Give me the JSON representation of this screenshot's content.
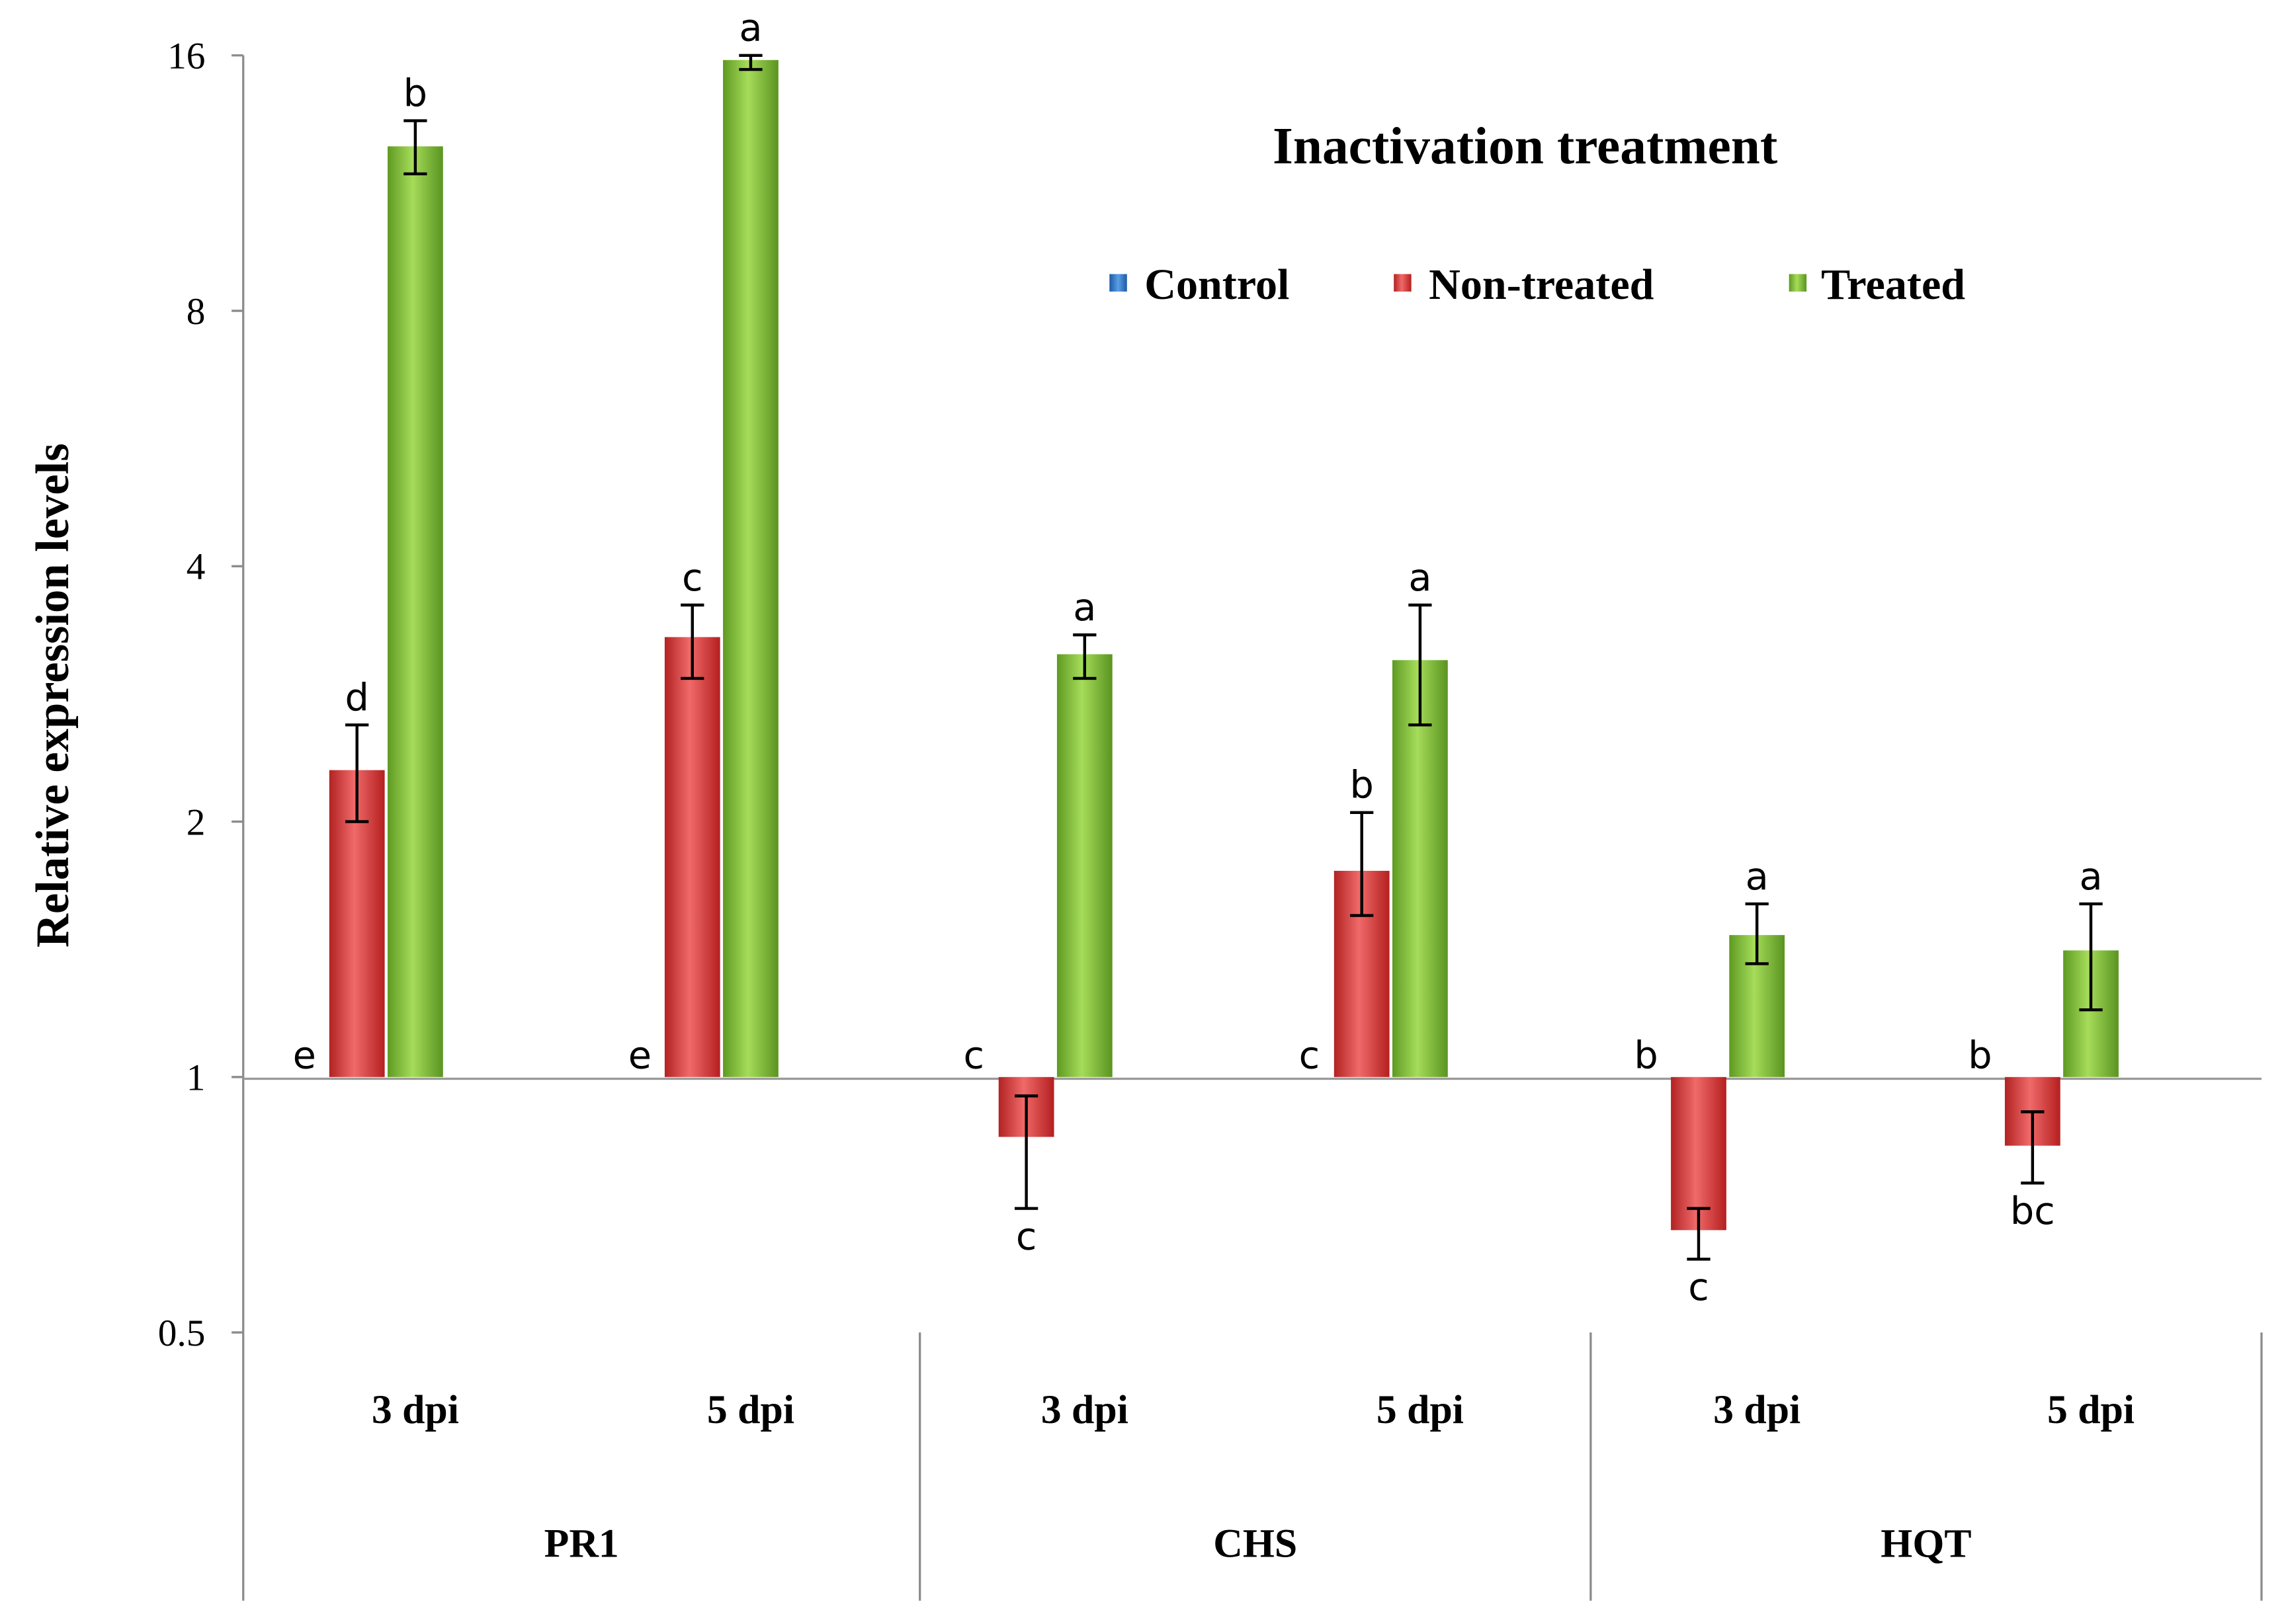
{
  "chart_data": {
    "type": "bar",
    "title": "Inactivation treatment",
    "ylabel": "Relative expression levels",
    "xlabel": "",
    "y_scale": "log2",
    "ylim": [
      0.5,
      16
    ],
    "baseline": 1,
    "yticks": [
      0.5,
      1,
      2,
      4,
      8,
      16
    ],
    "ytick_labels": [
      "0.5",
      "1",
      "2",
      "4",
      "8",
      "16"
    ],
    "groups": [
      "PR1",
      "CHS",
      "HQT"
    ],
    "categories": [
      "3 dpi",
      "5 dpi",
      "3 dpi",
      "5 dpi",
      "3 dpi",
      "5 dpi"
    ],
    "category_group": [
      0,
      0,
      1,
      1,
      2,
      2
    ],
    "legend_position": "top-right",
    "series": [
      {
        "name": "Control",
        "color": "#2e75c8",
        "values": [
          1,
          1,
          1,
          1,
          1,
          1
        ],
        "error_low": [
          1,
          1,
          1,
          1,
          1,
          1
        ],
        "error_high": [
          1,
          1,
          1,
          1,
          1,
          1
        ],
        "letters": [
          "e",
          "e",
          "c",
          "c",
          "b",
          "b"
        ]
      },
      {
        "name": "Non-treated",
        "color": "#d83a3a",
        "values": [
          2.3,
          3.3,
          0.85,
          1.75,
          0.66,
          0.83
        ],
        "error_low": [
          2.0,
          2.95,
          0.7,
          1.55,
          0.61,
          0.75
        ],
        "error_high": [
          2.6,
          3.6,
          0.95,
          2.05,
          0.7,
          0.91
        ],
        "letters": [
          "d",
          "c",
          "c",
          "b",
          "c",
          "bc"
        ]
      },
      {
        "name": "Treated",
        "color": "#7cb33a",
        "values": [
          12.5,
          15.8,
          3.15,
          3.1,
          1.47,
          1.41
        ],
        "error_low": [
          11.6,
          15.4,
          2.95,
          2.6,
          1.36,
          1.2
        ],
        "error_high": [
          13.4,
          16.0,
          3.32,
          3.6,
          1.6,
          1.6
        ],
        "letters": [
          "b",
          "a",
          "a",
          "a",
          "a",
          "a"
        ]
      }
    ]
  }
}
